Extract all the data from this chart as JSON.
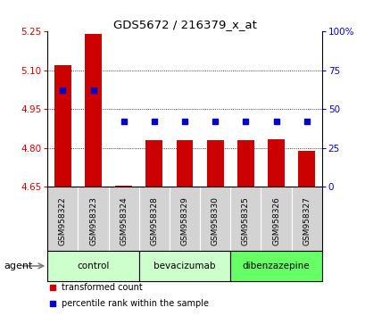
{
  "title": "GDS5672 / 216379_x_at",
  "samples": [
    "GSM958322",
    "GSM958323",
    "GSM958324",
    "GSM958328",
    "GSM958329",
    "GSM958330",
    "GSM958325",
    "GSM958326",
    "GSM958327"
  ],
  "bar_values": [
    5.12,
    5.24,
    4.655,
    4.83,
    4.83,
    4.83,
    4.83,
    4.835,
    4.79
  ],
  "percentile_values": [
    62,
    62,
    42,
    42,
    42,
    42,
    42,
    42,
    42
  ],
  "ylim_left": [
    4.65,
    5.25
  ],
  "ylim_right": [
    0,
    100
  ],
  "yticks_left": [
    4.65,
    4.8,
    4.95,
    5.1,
    5.25
  ],
  "yticks_right": [
    0,
    25,
    50,
    75,
    100
  ],
  "bar_color": "#cc0000",
  "dot_color": "#0000cc",
  "group_spans": [
    {
      "start": 0,
      "end": 3,
      "label": "control",
      "color": "#ccffcc"
    },
    {
      "start": 3,
      "end": 6,
      "label": "bevacizumab",
      "color": "#ccffcc"
    },
    {
      "start": 6,
      "end": 9,
      "label": "dibenzazepine",
      "color": "#66ff66"
    }
  ],
  "agent_label": "agent",
  "legend_items": [
    {
      "label": "transformed count",
      "color": "#cc0000"
    },
    {
      "label": "percentile rank within the sample",
      "color": "#0000cc"
    }
  ],
  "background_color": "#ffffff",
  "tick_label_color_left": "#cc0000",
  "tick_label_color_right": "#0000cc",
  "base_value": 4.65,
  "grid_lines": [
    5.1,
    4.95,
    4.8
  ],
  "sample_box_color": "#d3d3d3"
}
